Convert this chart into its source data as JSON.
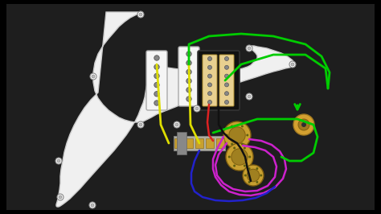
{
  "bg_outer": "#000000",
  "bg_inner": "#2a2a2a",
  "pickguard_fill": "#f0f0f0",
  "pickguard_edge": "#cccccc",
  "pickup_single_fill": "#f5f5f5",
  "pickup_single_edge": "#aaaaaa",
  "pickup_pole_fill": "#888888",
  "pickup_pole_edge": "#555555",
  "humbucker_black": "#111111",
  "humbucker_cream": "#e8d090",
  "pot_fill": "#c8a030",
  "pot_inner": "#a08020",
  "pot_edge": "#806010",
  "pot_dot": "#606010",
  "switch_fill": "#a0a0a0",
  "switch_contact": "#c8a030",
  "jack_fill": "#d4a030",
  "jack_inner": "#a07820",
  "jack_hole": "#303030",
  "wire_green": "#00cc00",
  "wire_yellow": "#dddd00",
  "wire_red": "#dd2222",
  "wire_black": "#111111",
  "wire_magenta": "#cc22cc",
  "wire_blue": "#2222cc",
  "fig_w": 4.74,
  "fig_h": 2.66,
  "dpi": 100,
  "screw_color": "#bbbbbb",
  "screw_edge": "#888888",
  "content_bg": "#1e1e1e"
}
